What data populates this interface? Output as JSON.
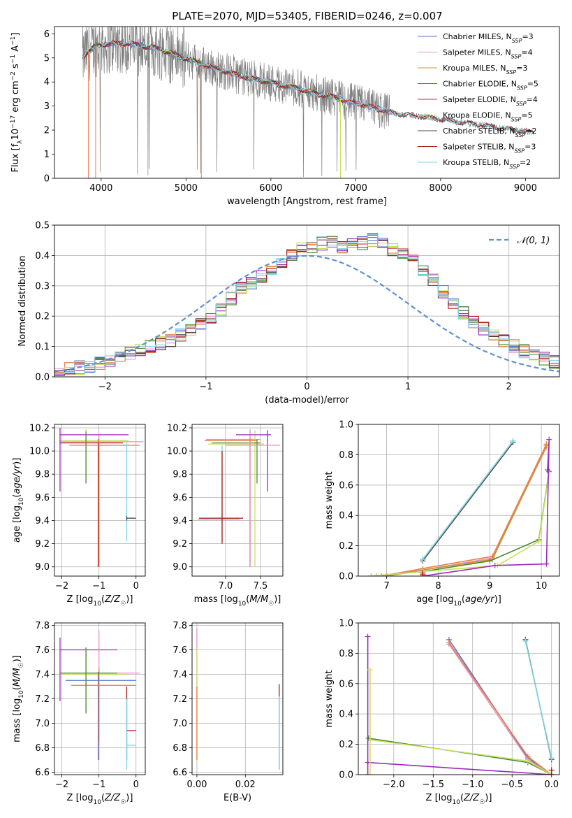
{
  "title": "PLATE=2070, MJD=53405, FIBERID=0246, z=0.007",
  "colors": {
    "data": "#808080",
    "chabrier_miles": "#4f75c4",
    "salpeter_miles": "#e891c6",
    "kroupa_miles": "#c8962d",
    "chabrier_elodie": "#4a8a35",
    "salpeter_elodie": "#9b2bb8",
    "kroupa_elodie": "#c6e05a",
    "chabrier_stelib": "#4a4a4a",
    "salpeter_stelib": "#b01a1a",
    "kroupa_stelib": "#7dd6e3",
    "orange": "#ef7a45",
    "gaussian": "#5f8fd6"
  },
  "chart_data": [
    {
      "type": "line",
      "id": "spectrum",
      "xlabel": "wavelength [Angstrom, rest frame]",
      "ylabel": "Flux [f_λ 10^-17 erg cm^-2 s^-1 A^-1]",
      "xlim": [
        3450,
        9400
      ],
      "ylim": [
        0,
        6.3
      ],
      "xticks": [
        4000,
        5000,
        6000,
        7000,
        8000,
        9000
      ],
      "yticks": [
        0,
        1,
        2,
        3,
        4,
        5,
        6
      ],
      "legend_position": "top-right",
      "legend": [
        {
          "label": "Chabrier MILES, N",
          "sub": "SSP",
          "suffix": "=3",
          "color": "chabrier_miles"
        },
        {
          "label": "Salpeter MILES, N",
          "sub": "SSP",
          "suffix": "=4",
          "color": "salpeter_miles"
        },
        {
          "label": "Kroupa MILES, N",
          "sub": "SSP",
          "suffix": "=3",
          "color": "kroupa_miles"
        },
        {
          "label": "Chabrier ELODIE, N",
          "sub": "SSP",
          "suffix": "=5",
          "color": "chabrier_elodie"
        },
        {
          "label": "Salpeter ELODIE, N",
          "sub": "SSP",
          "suffix": "=4",
          "color": "salpeter_elodie"
        },
        {
          "label": "Kroupa ELODIE, N",
          "sub": "SSP",
          "suffix": "=5",
          "color": "kroupa_elodie"
        },
        {
          "label": "Chabrier STELIB, N",
          "sub": "SSP",
          "suffix": "=2",
          "color": "chabrier_stelib"
        },
        {
          "label": "Salpeter STELIB, N",
          "sub": "SSP",
          "suffix": "=3",
          "color": "salpeter_stelib"
        },
        {
          "label": "Kroupa STELIB, N",
          "sub": "SSP",
          "suffix": "=2",
          "color": "kroupa_stelib"
        }
      ],
      "continuum": {
        "x": [
          3780,
          3850,
          3950,
          4100,
          4300,
          4500,
          4700,
          4900,
          5100,
          5300,
          5500,
          5700,
          5900,
          6100,
          6300,
          6500,
          6700,
          6900,
          7100,
          7300,
          7500,
          7700,
          7900,
          8100,
          8300,
          8500,
          8700,
          8900,
          9100
        ],
        "y": [
          5.0,
          5.3,
          5.5,
          5.6,
          5.6,
          5.5,
          5.35,
          5.1,
          4.85,
          4.6,
          4.4,
          4.2,
          4.05,
          3.9,
          3.75,
          3.55,
          3.4,
          3.2,
          3.05,
          2.85,
          2.65,
          2.6,
          2.5,
          2.4,
          2.3,
          2.2,
          2.1,
          2.0,
          1.9
        ]
      },
      "model_ranges": [
        {
          "name": "MILES",
          "x": [
            3780,
            7420
          ],
          "colors": [
            "chabrier_miles",
            "salpeter_miles",
            "orange"
          ]
        },
        {
          "name": "ELODIE",
          "x": [
            3780,
            6820
          ],
          "colors": [
            "chabrier_elodie",
            "salpeter_elodie",
            "kroupa_elodie"
          ]
        },
        {
          "name": "STELIB",
          "x": [
            3780,
            9100
          ],
          "colors": [
            "chabrier_stelib",
            "salpeter_stelib",
            "kroupa_stelib"
          ]
        }
      ]
    },
    {
      "type": "line",
      "id": "residuals",
      "xlabel": "(data-model)/error",
      "ylabel": "Normed distribution",
      "xlim": [
        -2.5,
        2.5
      ],
      "ylim": [
        0,
        0.5
      ],
      "xticks": [
        -2,
        -1,
        0,
        1,
        2
      ],
      "yticks": [
        0.0,
        0.1,
        0.2,
        0.3,
        0.4,
        0.5
      ],
      "legend_position": "top-right",
      "legend": [
        {
          "label": "𝒩(0, 1)",
          "color": "gaussian"
        }
      ],
      "bin_width": 0.1,
      "bins_from": -2.5,
      "base_histogram": [
        0.02,
        0.025,
        0.03,
        0.035,
        0.045,
        0.055,
        0.065,
        0.075,
        0.085,
        0.1,
        0.11,
        0.12,
        0.14,
        0.155,
        0.17,
        0.19,
        0.22,
        0.26,
        0.29,
        0.31,
        0.33,
        0.36,
        0.38,
        0.4,
        0.42,
        0.43,
        0.44,
        0.45,
        0.43,
        0.44,
        0.44,
        0.45,
        0.44,
        0.42,
        0.4,
        0.38,
        0.35,
        0.32,
        0.28,
        0.24,
        0.21,
        0.18,
        0.16,
        0.14,
        0.12,
        0.1,
        0.085,
        0.07,
        0.06,
        0.05,
        0.04,
        0.035,
        0.03,
        0.025,
        0.02
      ],
      "histogram_colors": [
        "chabrier_miles",
        "salpeter_miles",
        "orange",
        "chabrier_elodie",
        "salpeter_elodie",
        "kroupa_elodie",
        "chabrier_stelib",
        "salpeter_stelib",
        "kroupa_stelib"
      ]
    },
    {
      "type": "scatter",
      "id": "age_vs_Z",
      "xlabel": "Z [log10(Z/Z☉)]",
      "ylabel": "age  [log10(age/yr)]",
      "xlim": [
        -2.2,
        0.25
      ],
      "ylim": [
        8.92,
        10.23
      ],
      "xticks": [
        -2,
        -1,
        0
      ],
      "yticks": [
        9.0,
        9.2,
        9.4,
        9.6,
        9.8,
        10.0,
        10.2
      ]
    },
    {
      "type": "scatter",
      "id": "age_vs_mass",
      "xlabel": "mass [log10(M/M☉)]",
      "ylabel": "",
      "xlim": [
        6.52,
        7.82
      ],
      "ylim": [
        8.92,
        10.23
      ],
      "xticks": [
        7.0,
        7.5
      ],
      "yticks": [
        9.0,
        9.2,
        9.4,
        9.6,
        9.8,
        10.0,
        10.2
      ]
    },
    {
      "type": "line",
      "id": "weight_vs_age",
      "xlabel": "age  [log10(age/yr)]",
      "ylabel": "mass weight",
      "xlim": [
        6.45,
        10.35
      ],
      "ylim": [
        0,
        1.0
      ],
      "xticks": [
        7,
        8,
        9,
        10
      ],
      "yticks": [
        0.0,
        0.2,
        0.4,
        0.6,
        0.8,
        1.0
      ],
      "series": [
        {
          "color": "chabrier_miles",
          "x": [
            7.7,
            9.45
          ],
          "y": [
            0.11,
            0.89
          ]
        },
        {
          "color": "chabrier_stelib",
          "x": [
            7.7,
            9.45
          ],
          "y": [
            0.1,
            0.88
          ]
        },
        {
          "color": "kroupa_stelib",
          "x": [
            7.7,
            9.45
          ],
          "y": [
            0.11,
            0.89
          ]
        },
        {
          "color": "salpeter_miles",
          "x": [
            6.8,
            7.7,
            9.05,
            10.1
          ],
          "y": [
            0.0,
            0.04,
            0.12,
            0.85
          ]
        },
        {
          "color": "orange",
          "x": [
            6.9,
            7.7,
            9.05,
            10.1
          ],
          "y": [
            0.0,
            0.05,
            0.13,
            0.87
          ]
        },
        {
          "color": "kroupa_miles",
          "x": [
            7.0,
            7.7,
            9.05,
            10.1
          ],
          "y": [
            0.0,
            0.04,
            0.11,
            0.86
          ]
        },
        {
          "color": "chabrier_elodie",
          "x": [
            6.7,
            7.7,
            9.0,
            9.95,
            10.15
          ],
          "y": [
            0.0,
            0.03,
            0.1,
            0.24,
            0.69
          ]
        },
        {
          "color": "kroupa_elodie",
          "x": [
            6.7,
            7.7,
            9.15,
            9.95,
            10.15
          ],
          "y": [
            0.0,
            0.03,
            0.07,
            0.23,
            0.68
          ]
        },
        {
          "color": "salpeter_elodie",
          "x": [
            7.7,
            9.1,
            10.1,
            10.15,
            10.12
          ],
          "y": [
            0.0,
            0.07,
            0.08,
            0.9,
            0.7
          ]
        },
        {
          "color": "salpeter_stelib",
          "x": [
            7.7,
            7.7,
            7.7
          ],
          "y": [
            0.0,
            0.01,
            0.02
          ]
        }
      ]
    },
    {
      "type": "scatter",
      "id": "mass_vs_Z",
      "xlabel": "Z [log10(Z/Z☉)]",
      "ylabel": "mass [log10(M/M☉)]",
      "xlim": [
        -2.2,
        0.25
      ],
      "ylim": [
        6.58,
        7.82
      ],
      "xticks": [
        -2,
        -1,
        0
      ],
      "yticks": [
        6.6,
        6.8,
        7.0,
        7.2,
        7.4,
        7.6,
        7.8
      ]
    },
    {
      "type": "scatter",
      "id": "mass_vs_ebv",
      "xlabel": "E(B-V)",
      "ylabel": "",
      "xlim": [
        -0.002,
        0.0355
      ],
      "ylim": [
        6.58,
        7.82
      ],
      "xticks": [
        0.0,
        0.02
      ],
      "yticks": [
        6.6,
        6.8,
        7.0,
        7.2,
        7.4,
        7.6,
        7.8
      ]
    },
    {
      "type": "line",
      "id": "weight_vs_Z",
      "xlabel": "Z [log10(Z/Z☉)]",
      "ylabel": "mass weight",
      "xlim": [
        -2.45,
        0.1
      ],
      "ylim": [
        0,
        1.0
      ],
      "xticks": [
        -2.0,
        -1.5,
        -1.0,
        -0.5,
        0.0
      ],
      "yticks": [
        0.0,
        0.2,
        0.4,
        0.6,
        0.8,
        1.0
      ],
      "series": [
        {
          "color": "chabrier_miles",
          "x": [
            -1.3,
            -0.3,
            0.0
          ],
          "y": [
            0.89,
            0.11,
            0.0
          ]
        },
        {
          "color": "salpeter_miles",
          "x": [
            -1.3,
            -0.3,
            0.0
          ],
          "y": [
            0.86,
            0.1,
            0.0
          ]
        },
        {
          "color": "orange",
          "x": [
            -1.3,
            -0.3,
            0.0
          ],
          "y": [
            0.87,
            0.12,
            0.0
          ]
        },
        {
          "color": "chabrier_stelib",
          "x": [
            -0.33,
            0.0
          ],
          "y": [
            0.89,
            0.1
          ]
        },
        {
          "color": "kroupa_stelib",
          "x": [
            -0.33,
            0.0
          ],
          "y": [
            0.88,
            0.11
          ]
        },
        {
          "color": "chabrier_elodie",
          "x": [
            -2.32,
            -0.3,
            0.0
          ],
          "y": [
            0.24,
            0.08,
            0.0
          ]
        },
        {
          "color": "kroupa_elodie",
          "x": [
            -2.3,
            -0.3,
            0.0
          ],
          "y": [
            0.23,
            0.09,
            0.0
          ]
        },
        {
          "color": "salpeter_elodie",
          "x": [
            -2.33,
            0.0
          ],
          "y": [
            0.08,
            0.0
          ]
        },
        {
          "color": "salpeter_elodie",
          "x": [
            -2.33,
            -2.33
          ],
          "y": [
            0.0,
            0.91
          ]
        },
        {
          "color": "kroupa_elodie",
          "x": [
            -2.3,
            -2.3
          ],
          "y": [
            0.0,
            0.69
          ]
        },
        {
          "color": "salpeter_stelib",
          "x": [
            0.0,
            0.0
          ],
          "y": [
            0.0,
            0.03
          ]
        }
      ]
    }
  ],
  "crosses": {
    "age_vs_Z": [
      {
        "x": -1.02,
        "y": 10.07,
        "xl": -2.05,
        "xh": -0.35,
        "yl": 9.0,
        "yh": 10.1,
        "color": "salpeter_stelib"
      },
      {
        "x": -1.0,
        "y": 10.08,
        "xl": -2.05,
        "xh": 0.2,
        "yl": 9.0,
        "yh": 10.15,
        "color": "salpeter_miles"
      },
      {
        "x": -1.35,
        "y": 10.09,
        "xl": -2.08,
        "xh": -0.2,
        "yl": 9.72,
        "yh": 10.19,
        "color": "kroupa_elodie"
      },
      {
        "x": -2.05,
        "y": 10.14,
        "xl": -2.05,
        "xh": -0.2,
        "yl": 9.65,
        "yh": 10.2,
        "color": "salpeter_elodie"
      },
      {
        "x": -1.0,
        "y": 10.05,
        "xl": -1.8,
        "xh": 0.1,
        "yl": 9.0,
        "yh": 10.1,
        "color": "orange"
      },
      {
        "x": -0.25,
        "y": 9.42,
        "xl": -0.28,
        "xh": 0.0,
        "yl": 9.22,
        "yh": 10.08,
        "color": "kroupa_stelib"
      },
      {
        "x": -0.25,
        "y": 9.42,
        "xl": -0.25,
        "xh": 0.0,
        "yl": 9.4,
        "yh": 9.44,
        "color": "chabrier_stelib"
      },
      {
        "x": -1.35,
        "y": 10.07,
        "xl": -1.35,
        "xh": -1.35,
        "yl": 9.72,
        "yh": 10.17,
        "color": "chabrier_elodie"
      }
    ],
    "age_vs_mass": [
      {
        "x": 7.35,
        "y": 10.1,
        "xl": 6.72,
        "xh": 7.5,
        "yl": 9.0,
        "yh": 10.19,
        "color": "salpeter_miles"
      },
      {
        "x": 7.42,
        "y": 10.06,
        "xl": 6.75,
        "xh": 7.55,
        "yl": 9.0,
        "yh": 10.18,
        "color": "kroupa_elodie"
      },
      {
        "x": 7.6,
        "y": 10.14,
        "xl": 7.15,
        "xh": 7.65,
        "yl": 9.65,
        "yh": 10.18,
        "color": "salpeter_elodie"
      },
      {
        "x": 7.35,
        "y": 10.09,
        "xl": 6.7,
        "xh": 7.45,
        "yl": 9.0,
        "yh": 10.12,
        "color": "orange"
      },
      {
        "x": 6.95,
        "y": 9.41,
        "xl": 6.6,
        "xh": 7.2,
        "yl": 9.22,
        "yh": 10.05,
        "color": "kroupa_stelib"
      },
      {
        "x": 6.95,
        "y": 9.42,
        "xl": 6.62,
        "xh": 7.25,
        "yl": 9.2,
        "yh": 10.0,
        "color": "salpeter_stelib"
      },
      {
        "x": 7.45,
        "y": 10.07,
        "xl": 6.8,
        "xh": 7.5,
        "yl": 9.72,
        "yh": 10.1,
        "color": "chabrier_elodie"
      },
      {
        "x": 7.35,
        "y": 10.05,
        "xl": 7.0,
        "xh": 7.78,
        "yl": 9.0,
        "yh": 10.08,
        "color": "salpeter_miles"
      }
    ],
    "mass_vs_Z": [
      {
        "x": -2.05,
        "y": 7.6,
        "xl": -2.05,
        "xh": -0.5,
        "yl": 7.18,
        "yh": 7.7,
        "color": "salpeter_elodie"
      },
      {
        "x": -1.0,
        "y": 7.41,
        "xl": -2.05,
        "xh": 0.1,
        "yl": 6.7,
        "yh": 7.76,
        "color": "salpeter_miles"
      },
      {
        "x": -1.35,
        "y": 7.4,
        "xl": -2.0,
        "xh": -0.3,
        "yl": 7.08,
        "yh": 7.62,
        "color": "kroupa_elodie"
      },
      {
        "x": -1.02,
        "y": 7.35,
        "xl": -1.9,
        "xh": 0.0,
        "yl": 6.7,
        "yh": 7.42,
        "color": "chabrier_miles"
      },
      {
        "x": -1.0,
        "y": 7.31,
        "xl": -1.75,
        "xh": 0.0,
        "yl": 6.85,
        "yh": 7.45,
        "color": "orange"
      },
      {
        "x": -0.25,
        "y": 6.94,
        "xl": -0.25,
        "xh": 0.0,
        "yl": 6.7,
        "yh": 7.3,
        "color": "salpeter_stelib"
      },
      {
        "x": -0.25,
        "y": 6.82,
        "xl": -0.25,
        "xh": 0.0,
        "yl": 6.62,
        "yh": 7.2,
        "color": "kroupa_stelib"
      },
      {
        "x": -1.35,
        "y": 7.41,
        "xl": -2.05,
        "xh": -0.5,
        "yl": 7.08,
        "yh": 7.62,
        "color": "chabrier_elodie"
      }
    ],
    "mass_vs_ebv": [
      {
        "x": 0.0,
        "y": 7.6,
        "xl": 0.0,
        "xh": 0.0,
        "yl": 7.2,
        "yh": 7.78,
        "color": "salpeter_miles"
      },
      {
        "x": 0.0,
        "y": 7.3,
        "xl": 0.0,
        "xh": 0.0,
        "yl": 6.68,
        "yh": 7.6,
        "color": "kroupa_elodie"
      },
      {
        "x": 0.0,
        "y": 7.0,
        "xl": 0.0,
        "xh": 0.0,
        "yl": 6.7,
        "yh": 7.3,
        "color": "orange"
      },
      {
        "x": 0.034,
        "y": 7.0,
        "xl": 0.034,
        "xh": 0.034,
        "yl": 6.62,
        "yh": 7.32,
        "color": "salpeter_stelib"
      },
      {
        "x": 0.034,
        "y": 6.9,
        "xl": 0.034,
        "xh": 0.034,
        "yl": 6.62,
        "yh": 7.22,
        "color": "kroupa_stelib"
      }
    ]
  }
}
